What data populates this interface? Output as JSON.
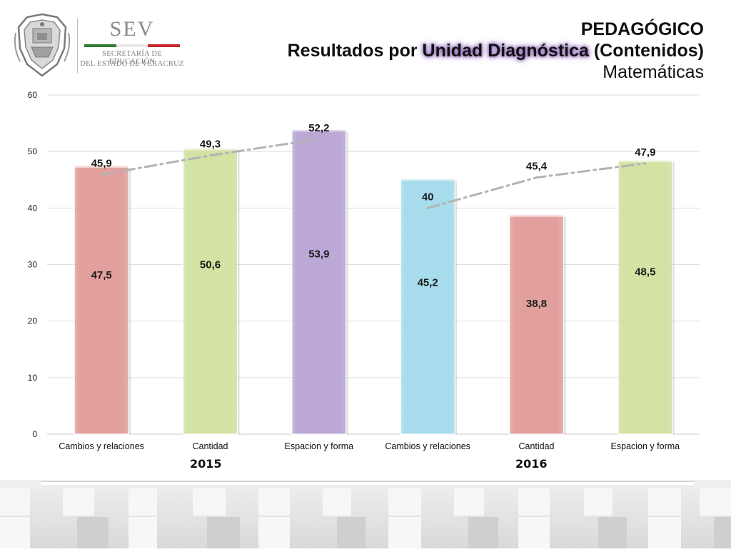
{
  "header": {
    "logo_name": "SEV",
    "logo_line1": "SECRETARÍA DE EDUCACIÓN",
    "logo_line2": "DEL ESTADO DE VERACRUZ",
    "title_line1": "PEDAGÓGICO",
    "title_line2_a": "Resultados por ",
    "title_line2_highlight": "Unidad Diagnóstica",
    "title_line2_b": " (Contenidos)",
    "title_line3": "Matemáticas"
  },
  "colors": {
    "flag_green": "#2e7d32",
    "flag_white": "#ffffff",
    "flag_red": "#c62828",
    "highlight": "#8e6bb8"
  },
  "years": [
    "2015",
    "2016"
  ],
  "chart_data": {
    "type": "bar",
    "categories": [
      "Cambios y relaciones",
      "Cantidad",
      "Espacion y forma",
      "Cambios y relaciones",
      "Cantidad",
      "Espacion y forma"
    ],
    "groups": [
      {
        "label": "2015",
        "categories": [
          0,
          1,
          2
        ]
      },
      {
        "label": "2016",
        "categories": [
          3,
          4,
          5
        ]
      }
    ],
    "values": [
      47.5,
      50.6,
      53.9,
      45.2,
      38.8,
      48.5
    ],
    "value_labels": [
      "47,5",
      "50,6",
      "53,9",
      "45,2",
      "38,8",
      "48,5"
    ],
    "bar_colors": [
      "#e2a09d",
      "#d3e3a3",
      "#bba8d6",
      "#a6dcec",
      "#e2a09d",
      "#d3e3a3"
    ],
    "overlay_lines": [
      {
        "style": "dash-dot",
        "color": "#b3b3b3",
        "categories": [
          0,
          1,
          2
        ],
        "values": [
          45.9,
          49.3,
          52.2
        ],
        "labels": [
          "45,9",
          "49,3",
          "52,2"
        ]
      },
      {
        "style": "dash-dot",
        "color": "#b3b3b3",
        "categories": [
          3,
          4,
          5
        ],
        "values": [
          40,
          45.4,
          47.9
        ],
        "labels": [
          "40",
          "45,4",
          "47,9"
        ]
      }
    ],
    "ylim": [
      0,
      60
    ],
    "yticks": [
      0,
      10,
      20,
      30,
      40,
      50,
      60
    ],
    "ytick_labels": [
      "0",
      "10",
      "20",
      "30",
      "40",
      "50",
      "60"
    ],
    "grid": true,
    "legend": "none"
  }
}
